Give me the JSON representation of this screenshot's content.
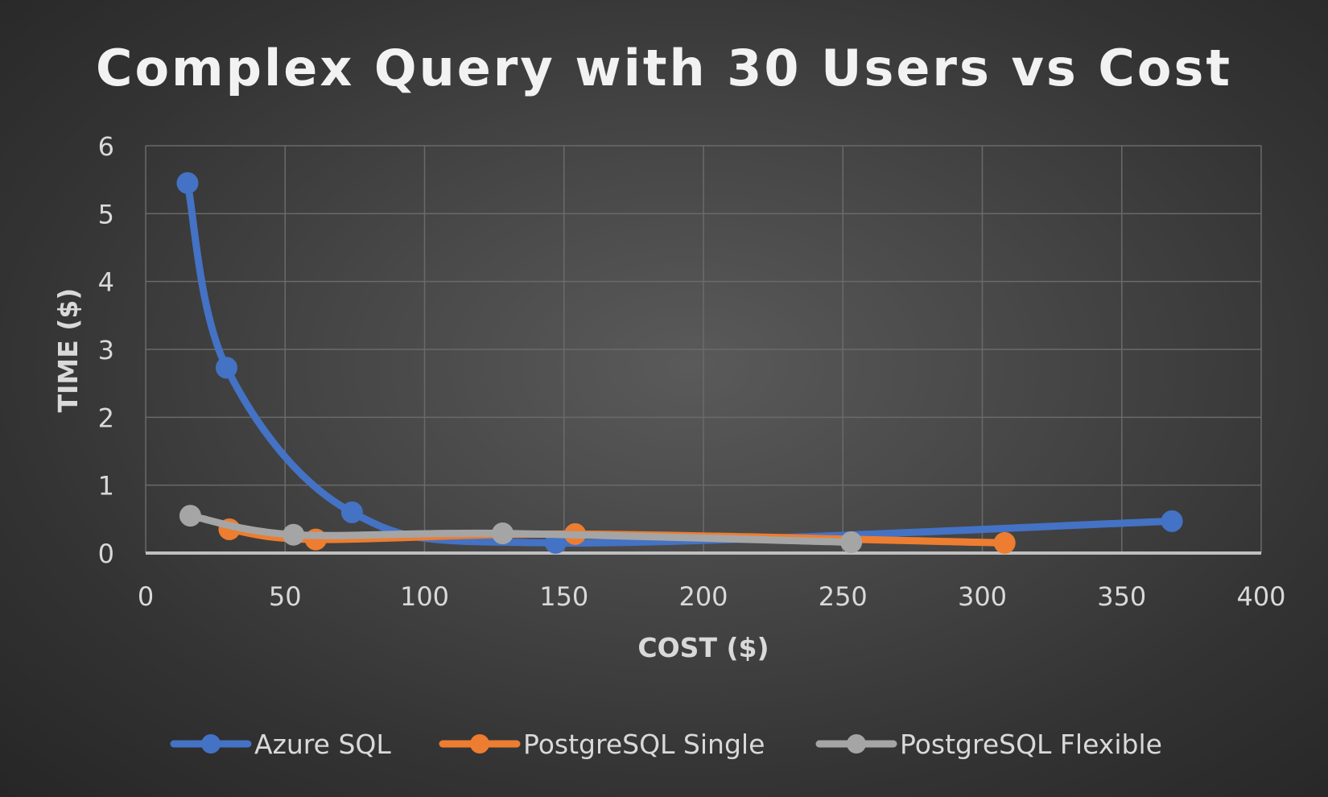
{
  "chart_data": {
    "type": "scatter",
    "title": "Complex Query with 30 Users vs Cost",
    "xlabel": "COST ($)",
    "ylabel": "TIME ($)",
    "xlim": [
      0,
      400
    ],
    "ylim": [
      0,
      6
    ],
    "x_ticks": [
      "0",
      "50",
      "100",
      "150",
      "200",
      "250",
      "300",
      "350",
      "400"
    ],
    "y_ticks": [
      "0",
      "1",
      "2",
      "3",
      "4",
      "5",
      "6"
    ],
    "grid": true,
    "smooth": true,
    "legend_position": "bottom",
    "series": [
      {
        "name": "Azure SQL",
        "color": "#4472C4",
        "points": [
          [
            15,
            5.45
          ],
          [
            29,
            2.73
          ],
          [
            74,
            0.6
          ],
          [
            147,
            0.15
          ],
          [
            368,
            0.47
          ]
        ]
      },
      {
        "name": "PostgreSQL Single",
        "color": "#ED7D31",
        "points": [
          [
            30,
            0.35
          ],
          [
            61,
            0.2
          ],
          [
            154,
            0.28
          ],
          [
            308,
            0.15
          ]
        ]
      },
      {
        "name": "PostgreSQL Flexible",
        "color": "#A5A5A5",
        "points": [
          [
            16,
            0.55
          ],
          [
            53,
            0.27
          ],
          [
            128,
            0.29
          ],
          [
            253,
            0.16
          ]
        ]
      }
    ]
  }
}
